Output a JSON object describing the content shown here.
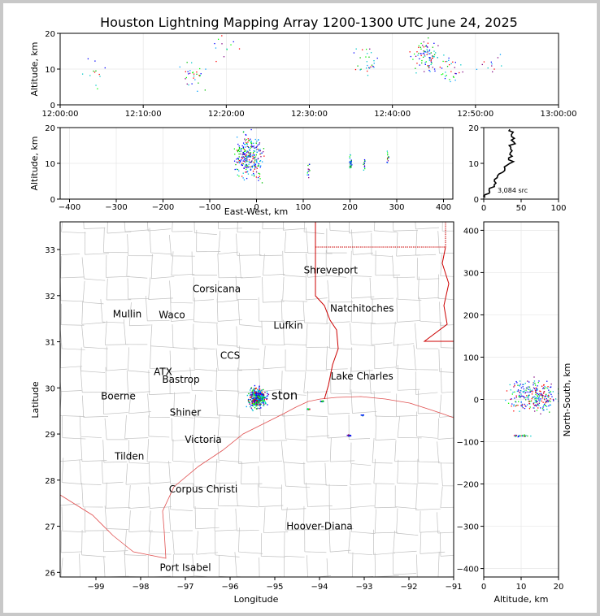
{
  "title": "Houston Lightning Mapping Array 1200-1300 UTC June 24, 2025",
  "colors": {
    "frame": "#c8c8c8",
    "state_border": "#cc0000",
    "county_line": "#c0c0c0",
    "coast": "#e05050"
  },
  "chart_data": [
    {
      "id": "time-altitude",
      "type": "scatter",
      "ylabel": "Altitude, km",
      "ylim": [
        0,
        20
      ],
      "xlim": [
        "12:00:00",
        "13:00:00"
      ],
      "xticks": [
        "12:00:00",
        "12:10:00",
        "12:20:00",
        "12:30:00",
        "12:40:00",
        "12:50:00",
        "13:00:00"
      ],
      "yticks": [
        "0",
        "10",
        "20"
      ],
      "source_clusters": [
        {
          "t_min": 4,
          "alt_km": 9,
          "density": "low"
        },
        {
          "t_min": 16,
          "alt_km": 8,
          "density": "medium"
        },
        {
          "t_min": 20,
          "alt_km": 16,
          "density": "low"
        },
        {
          "t_min": 37,
          "alt_km": 12,
          "density": "medium"
        },
        {
          "t_min": 44,
          "alt_km": 14,
          "density": "high"
        },
        {
          "t_min": 47,
          "alt_km": 10,
          "density": "medium"
        },
        {
          "t_min": 52,
          "alt_km": 11,
          "density": "low"
        }
      ]
    },
    {
      "id": "eastwest-altitude",
      "type": "scatter",
      "xlabel": "East-West, km",
      "ylabel": "Altitude, km",
      "xlim": [
        -420,
        420
      ],
      "ylim": [
        0,
        20
      ],
      "xticks": [
        "−400",
        "−300",
        "−200",
        "−100",
        "0",
        "100",
        "200",
        "300",
        "400"
      ],
      "yticks": [
        "0",
        "10",
        "20"
      ],
      "source_clusters": [
        {
          "x_km": -20,
          "alt_km": 12,
          "density": "high"
        },
        {
          "x_km": 110,
          "alt_km": 8,
          "density": "low"
        },
        {
          "x_km": 200,
          "alt_km": 10,
          "density": "medium"
        },
        {
          "x_km": 230,
          "alt_km": 10,
          "density": "low"
        },
        {
          "x_km": 280,
          "alt_km": 12,
          "density": "low"
        }
      ]
    },
    {
      "id": "altitude-histogram",
      "type": "line",
      "xlim": [
        0,
        100
      ],
      "ylim": [
        0,
        20
      ],
      "xticks": [
        "0",
        "50",
        "100"
      ],
      "yticks": [
        "0",
        "10",
        "20"
      ],
      "annotation": "3,084 src",
      "profile": [
        {
          "count": 2,
          "alt_km": 0.5
        },
        {
          "count": 8,
          "alt_km": 2
        },
        {
          "count": 14,
          "alt_km": 4
        },
        {
          "count": 18,
          "alt_km": 6
        },
        {
          "count": 28,
          "alt_km": 8
        },
        {
          "count": 35,
          "alt_km": 10
        },
        {
          "count": 38,
          "alt_km": 12
        },
        {
          "count": 36,
          "alt_km": 14
        },
        {
          "count": 40,
          "alt_km": 16
        },
        {
          "count": 37,
          "alt_km": 18
        },
        {
          "count": 35,
          "alt_km": 19.5
        }
      ]
    },
    {
      "id": "plan-view-map",
      "type": "scatter",
      "xlabel": "Longitude",
      "ylabel": "Latitude",
      "xlim": [
        -99.8,
        -91
      ],
      "ylim": [
        25.9,
        33.6
      ],
      "xticks": [
        "−99",
        "−98",
        "−97",
        "−96",
        "−95",
        "−94",
        "−93",
        "−92",
        "−91"
      ],
      "yticks": [
        "26",
        "27",
        "28",
        "29",
        "30",
        "31",
        "32",
        "33"
      ],
      "places": [
        {
          "name": "Shreveport",
          "lon": -93.75,
          "lat": 32.55
        },
        {
          "name": "Corsicana",
          "lon": -96.3,
          "lat": 32.15
        },
        {
          "name": "Natchitoches",
          "lon": -93.05,
          "lat": 31.72
        },
        {
          "name": "Mullin",
          "lon": -98.3,
          "lat": 31.6
        },
        {
          "name": "Waco",
          "lon": -97.3,
          "lat": 31.58
        },
        {
          "name": "Lufkin",
          "lon": -94.7,
          "lat": 31.35
        },
        {
          "name": "CCS",
          "lon": -96.0,
          "lat": 30.7
        },
        {
          "name": "ATX",
          "lon": -97.5,
          "lat": 30.35
        },
        {
          "name": "Bastrop",
          "lon": -97.1,
          "lat": 30.18
        },
        {
          "name": "Lake Charles",
          "lon": -93.05,
          "lat": 30.25
        },
        {
          "name": "Boerne",
          "lon": -98.5,
          "lat": 29.82
        },
        {
          "name": "ston",
          "lon": -94.78,
          "lat": 29.82
        },
        {
          "name": "Shiner",
          "lon": -97.0,
          "lat": 29.47
        },
        {
          "name": "Victoria",
          "lon": -96.6,
          "lat": 28.88
        },
        {
          "name": "Tilden",
          "lon": -98.25,
          "lat": 28.52
        },
        {
          "name": "Corpus Christi",
          "lon": -96.6,
          "lat": 27.8
        },
        {
          "name": "Hoover-Diana",
          "lon": -94.0,
          "lat": 27.0
        },
        {
          "name": "Port Isabel",
          "lon": -97.0,
          "lat": 26.1
        }
      ],
      "source_clusters": [
        {
          "lon": -95.4,
          "lat": 29.8,
          "density": "high"
        },
        {
          "lon": -94.25,
          "lat": 29.55,
          "density": "low"
        },
        {
          "lon": -93.35,
          "lat": 28.98,
          "density": "medium"
        },
        {
          "lon": -93.05,
          "lat": 29.42,
          "density": "low"
        },
        {
          "lon": -93.95,
          "lat": 29.72,
          "density": "low"
        }
      ]
    },
    {
      "id": "altitude-northsouth",
      "type": "scatter",
      "xlabel": "Altitude, km",
      "ylabel": "North-South, km",
      "xlim": [
        0,
        20
      ],
      "ylim": [
        -420,
        420
      ],
      "xticks": [
        "0",
        "10",
        "20"
      ],
      "yticks": [
        "−400",
        "−300",
        "−200",
        "−100",
        "0",
        "100",
        "200",
        "300",
        "400"
      ],
      "source_clusters": [
        {
          "alt_km": 13,
          "y_km": 10,
          "density": "high"
        },
        {
          "alt_km": 10,
          "y_km": -85,
          "density": "low"
        }
      ]
    }
  ]
}
